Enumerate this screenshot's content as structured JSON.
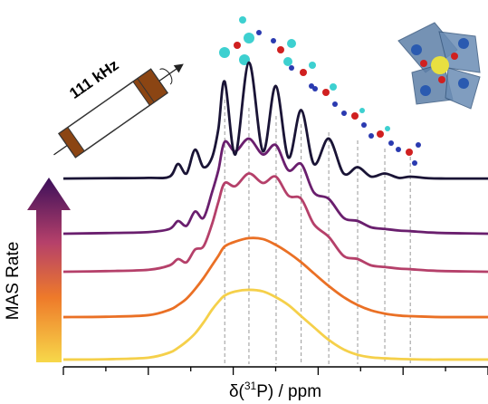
{
  "chart_data": {
    "type": "line",
    "x_label": {
      "prefix": "δ(",
      "superscript": "31",
      "suffix": "P) / ppm"
    },
    "annotations": {
      "spin_rate": "111 kHz",
      "arrow_label": "MAS Rate"
    },
    "x": [
      0,
      10,
      20,
      25,
      27,
      29,
      31,
      33,
      35,
      36.5,
      38,
      40.5,
      43.7,
      47,
      50,
      53,
      56,
      59,
      62.5,
      66,
      69.3,
      72.5,
      75.7,
      79,
      81.7,
      86,
      90,
      100
    ],
    "series": [
      {
        "color": "#f5d04a",
        "values": [
          2.3,
          2.4,
          2.9,
          4.5,
          6,
          8,
          10.5,
          14,
          18,
          20.5,
          22.5,
          23.8,
          24.3,
          23.8,
          22,
          19.5,
          16,
          12.5,
          8.5,
          5.5,
          3.8,
          3,
          2.7,
          2.5,
          2.4,
          2.3,
          2.3,
          2.3
        ]
      },
      {
        "color": "#ea7025",
        "values": [
          15.7,
          15.8,
          16.3,
          18,
          19.5,
          21.5,
          24.5,
          28,
          32,
          35,
          38,
          39.5,
          40.6,
          40.3,
          38.5,
          36,
          33,
          29.5,
          25.5,
          22,
          19.5,
          17.8,
          16.8,
          16.2,
          16,
          15.8,
          15.7,
          15.7
        ]
      },
      {
        "color": "#b5406a",
        "values": [
          30,
          30.2,
          30.6,
          32,
          34,
          33,
          37,
          38,
          45,
          52,
          58,
          57,
          61,
          58,
          60,
          54,
          53,
          45,
          41,
          35,
          34,
          32,
          31.5,
          31,
          30.8,
          30.4,
          30.2,
          30
        ]
      },
      {
        "color": "#6a1f6e",
        "values": [
          42,
          42.2,
          42.5,
          43.5,
          46,
          44.5,
          49,
          47,
          55,
          62,
          71,
          68,
          72,
          67,
          70,
          62,
          64,
          55,
          53,
          47,
          46,
          44,
          43.5,
          43,
          42.8,
          42.4,
          42.2,
          42
        ]
      },
      {
        "color": "#1a1436",
        "values": [
          59.4,
          59.5,
          59.6,
          60,
          64,
          61,
          68.5,
          63,
          66,
          75,
          90,
          67,
          96,
          68,
          88.6,
          66,
          81,
          64,
          72,
          61,
          63,
          60,
          61,
          59.6,
          60,
          59.5,
          59.4,
          59.4
        ]
      }
    ],
    "reference_lines": [
      38,
      43.7,
      50.1,
      56,
      62.5,
      69.3,
      75.7,
      81.7
    ],
    "xlim": [
      0,
      100
    ],
    "xticks": [
      0,
      10,
      20,
      30,
      40,
      50,
      60,
      70,
      80,
      90,
      100
    ],
    "ylim": [
      0,
      100
    ]
  }
}
